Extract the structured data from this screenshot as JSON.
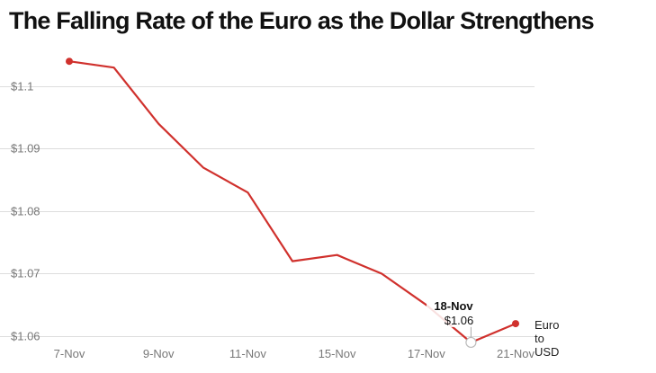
{
  "chart_data": {
    "type": "line",
    "title": "The Falling Rate of the Euro as the Dollar Strengthens",
    "x": [
      "7-Nov",
      "8-Nov",
      "9-Nov",
      "10-Nov",
      "11-Nov",
      "14-Nov",
      "15-Nov",
      "16-Nov",
      "17-Nov",
      "18-Nov",
      "21-Nov"
    ],
    "x_tick_labels": [
      "7-Nov",
      "9-Nov",
      "11-Nov",
      "15-Nov",
      "17-Nov",
      "21-Nov"
    ],
    "series": [
      {
        "name": "Euro to USD",
        "values": [
          1.104,
          1.103,
          1.094,
          1.087,
          1.083,
          1.072,
          1.073,
          1.07,
          1.065,
          1.059,
          1.062
        ],
        "color": "#d0312d"
      }
    ],
    "y_ticks": [
      1.06,
      1.07,
      1.08,
      1.09,
      1.1
    ],
    "y_tick_labels": [
      "$1.06",
      "$1.07",
      "$1.08",
      "$1.09",
      "$1.1"
    ],
    "ylim": [
      1.058,
      1.106
    ],
    "grid": true,
    "legend": {
      "position": "right",
      "lines": [
        "Euro",
        "to",
        "USD"
      ]
    },
    "tooltip": {
      "date": "18-Nov",
      "value_label": "$1.06",
      "index": 9
    }
  }
}
